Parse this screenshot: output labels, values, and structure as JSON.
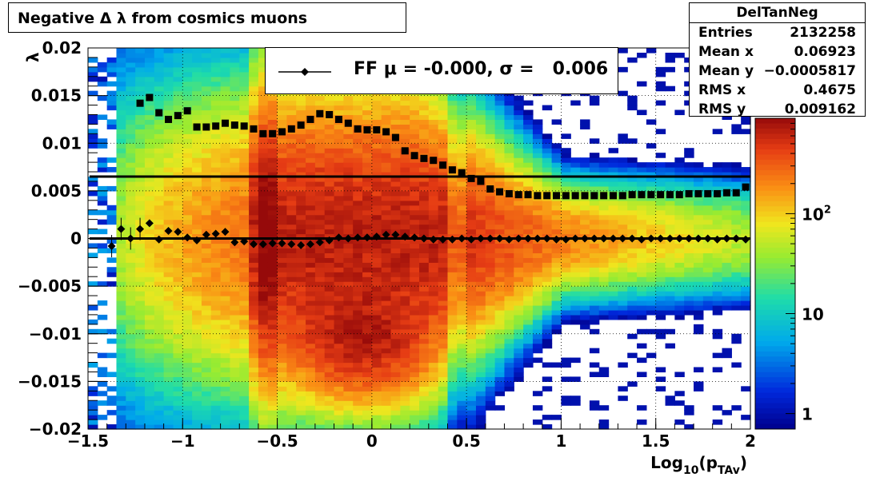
{
  "title": "Negative Δ λ from cosmics muons",
  "stats": {
    "name": "DelTanNeg",
    "rows": [
      {
        "label": "Entries",
        "value": "2132258"
      },
      {
        "label": "Mean x",
        "value": "0.06923"
      },
      {
        "label": "Mean y",
        "value": "−0.0005817"
      },
      {
        "label": "RMS x",
        "value": "0.4675"
      },
      {
        "label": "RMS y",
        "value": "0.009162"
      }
    ]
  },
  "legend": {
    "label": "FF μ = -0.000, σ =   0.006"
  },
  "colors": {
    "points": "#000000",
    "empty": "#ffffff"
  },
  "chart_data": {
    "type": "heatmap",
    "xlabel": "Log10(pTAv)",
    "ylabel": "λ",
    "xlim": [
      -1.5,
      2
    ],
    "ylim": [
      -0.02,
      0.02
    ],
    "x_ticks": [
      "−1.5",
      "−1",
      "−0.5",
      "0",
      "0.5",
      "1",
      "1.5",
      "2"
    ],
    "y_ticks": [
      "−0.02",
      "−0.015",
      "−0.01",
      "−0.005",
      "0",
      "0.005",
      "0.01",
      "0.015",
      "0.02"
    ],
    "color_scale": {
      "type": "log",
      "min": 0.7,
      "max": 900,
      "ticks": [
        "1",
        "10",
        "10^2"
      ]
    },
    "grid": true,
    "mean_series": {
      "x": [
        -1.375,
        -1.325,
        -1.275,
        -1.225,
        -1.175,
        -1.125,
        -1.075,
        -1.025,
        -0.975,
        -0.925,
        -0.875,
        -0.825,
        -0.775,
        -0.725,
        -0.675,
        -0.625,
        -0.575,
        -0.525,
        -0.475,
        -0.425,
        -0.375,
        -0.325,
        -0.275,
        -0.225,
        -0.175,
        -0.125,
        -0.075,
        -0.025,
        0.025,
        0.075,
        0.125,
        0.175,
        0.225,
        0.275,
        0.325,
        0.375,
        0.425,
        0.475,
        0.525,
        0.575,
        0.625,
        0.675,
        0.725,
        0.775,
        0.825,
        0.875,
        0.925,
        0.975,
        1.025,
        1.075,
        1.125,
        1.175,
        1.225,
        1.275,
        1.325,
        1.375,
        1.425,
        1.475,
        1.525,
        1.575,
        1.625,
        1.675,
        1.725,
        1.775,
        1.825,
        1.875,
        1.925,
        1.975
      ],
      "y": [
        -0.0008,
        0.001,
        0.0,
        0.001,
        0.0016,
        -0.0001,
        0.0008,
        0.0007,
        0.0001,
        -0.0002,
        0.0004,
        0.0005,
        0.0007,
        -0.0004,
        -0.0003,
        -0.0006,
        -0.0006,
        -0.0005,
        -0.0005,
        -0.0006,
        -0.0007,
        -0.0006,
        -0.0004,
        -0.0002,
        0.0001,
        0.0,
        0.0001,
        0.0001,
        0.0002,
        0.0004,
        0.0004,
        0.0002,
        0.0001,
        0.0,
        -0.0001,
        -0.0001,
        -0.0001,
        0.0,
        -0.0001,
        0.0,
        0.0,
        0.0,
        -0.0001,
        0.0,
        0.0,
        0.0,
        0.0,
        -0.0001,
        -0.0001,
        0.0,
        0.0,
        0.0,
        0.0,
        0.0,
        0.0,
        0.0,
        -0.0001,
        0.0,
        0.0,
        0.0,
        0.0,
        0.0,
        0.0,
        0.0,
        -0.0001,
        0.0,
        0.0,
        -0.0001
      ]
    },
    "sigma_series": {
      "x": [
        -1.225,
        -1.175,
        -1.125,
        -1.075,
        -1.025,
        -0.975,
        -0.925,
        -0.875,
        -0.825,
        -0.775,
        -0.725,
        -0.675,
        -0.625,
        -0.575,
        -0.525,
        -0.475,
        -0.425,
        -0.375,
        -0.325,
        -0.275,
        -0.225,
        -0.175,
        -0.125,
        -0.075,
        -0.025,
        0.025,
        0.075,
        0.125,
        0.175,
        0.225,
        0.275,
        0.325,
        0.375,
        0.425,
        0.475,
        0.525,
        0.575,
        0.625,
        0.675,
        0.725,
        0.775,
        0.825,
        0.875,
        0.925,
        0.975,
        1.025,
        1.075,
        1.125,
        1.175,
        1.225,
        1.275,
        1.325,
        1.375,
        1.425,
        1.475,
        1.525,
        1.575,
        1.625,
        1.675,
        1.725,
        1.775,
        1.825,
        1.875,
        1.925,
        1.975
      ],
      "y": [
        0.0142,
        0.0148,
        0.0132,
        0.0125,
        0.0129,
        0.0134,
        0.0117,
        0.0117,
        0.0118,
        0.0121,
        0.0119,
        0.0118,
        0.0115,
        0.011,
        0.011,
        0.0112,
        0.0115,
        0.0119,
        0.0125,
        0.0131,
        0.013,
        0.0125,
        0.0121,
        0.0115,
        0.0114,
        0.0114,
        0.0112,
        0.0106,
        0.0092,
        0.0087,
        0.0084,
        0.0082,
        0.0077,
        0.0072,
        0.0069,
        0.0063,
        0.006,
        0.0052,
        0.0049,
        0.0047,
        0.0046,
        0.0046,
        0.0045,
        0.0045,
        0.0045,
        0.0045,
        0.0045,
        0.0045,
        0.0045,
        0.0045,
        0.0045,
        0.0045,
        0.0046,
        0.0046,
        0.0046,
        0.0046,
        0.0046,
        0.0046,
        0.0047,
        0.0047,
        0.0047,
        0.0047,
        0.0048,
        0.0048,
        0.0054,
        0.0053,
        0.0054
      ]
    },
    "reference_lines": [
      0,
      0.0065
    ]
  }
}
